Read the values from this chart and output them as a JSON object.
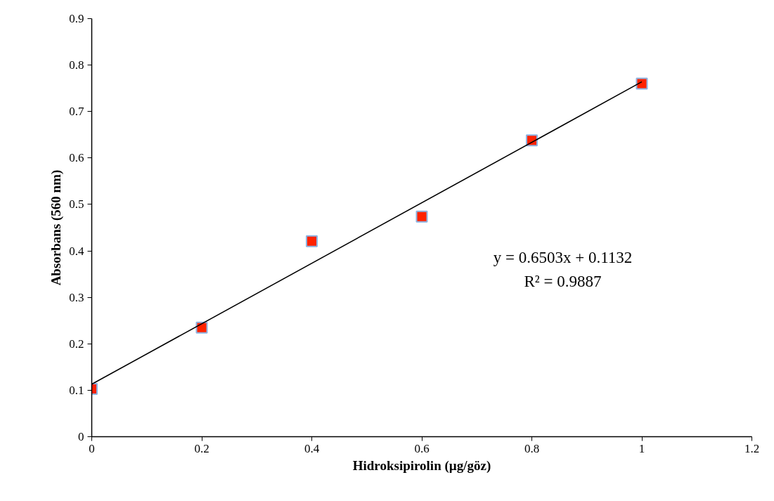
{
  "chart_data": {
    "type": "scatter",
    "xlabel": "Hidroksipirolin (µg/göz)",
    "ylabel": "Absorbans (560 nm)",
    "series": [
      {
        "color": "#ff2200",
        "x": [
          0,
          0.2,
          0.4,
          0.6,
          0.8,
          1
        ],
        "values": [
          0.103,
          0.235,
          0.421,
          0.474,
          0.638,
          0.76
        ]
      },
      {
        "type": "line",
        "marker": "none",
        "color": "#000000",
        "x": [
          0,
          1
        ],
        "values": [
          0.113,
          0.764
        ]
      }
    ],
    "marker": "square",
    "grid": false,
    "xlim": [
      0,
      1.2
    ],
    "xticks": [
      0,
      0.2,
      0.4,
      0.6,
      0.8,
      1,
      1.2
    ],
    "ylim": [
      0,
      0.9
    ],
    "yticks": [
      0,
      0.1,
      0.2,
      0.3,
      0.4,
      0.5,
      0.6,
      0.7,
      0.8,
      0.9
    ],
    "annotations": [
      "y = 0.6503x + 0.1132",
      "R² = 0.9887"
    ]
  }
}
